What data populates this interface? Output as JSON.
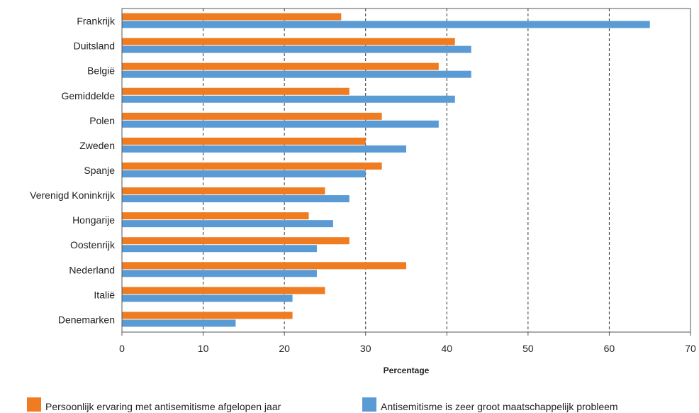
{
  "chart_data": {
    "type": "bar",
    "orientation": "horizontal",
    "categories": [
      "Frankrijk",
      "Duitsland",
      "België",
      "Gemiddelde",
      "Polen",
      "Zweden",
      "Spanje",
      "Verenigd Koninkrijk",
      "Hongarije",
      "Oostenrijk",
      "Nederland",
      "Italië",
      "Denemarken"
    ],
    "series": [
      {
        "name": "Persoonlijk ervaring met antisemitisme afgelopen jaar",
        "color": "#f07c22",
        "values": [
          27,
          41,
          39,
          28,
          32,
          30,
          32,
          25,
          23,
          28,
          35,
          25,
          21
        ]
      },
      {
        "name": "Antisemitisme is zeer groot maatschappelijk probleem",
        "color": "#5b9bd5",
        "values": [
          65,
          43,
          43,
          41,
          39,
          35,
          30,
          28,
          26,
          24,
          24,
          21,
          14
        ]
      }
    ],
    "xlabel": "Percentage",
    "xlim": [
      0,
      70
    ],
    "xticks": [
      "0",
      "10",
      "20",
      "30",
      "40",
      "50",
      "60",
      "70"
    ],
    "grid": "vertical dashed",
    "legend": "bottom"
  }
}
